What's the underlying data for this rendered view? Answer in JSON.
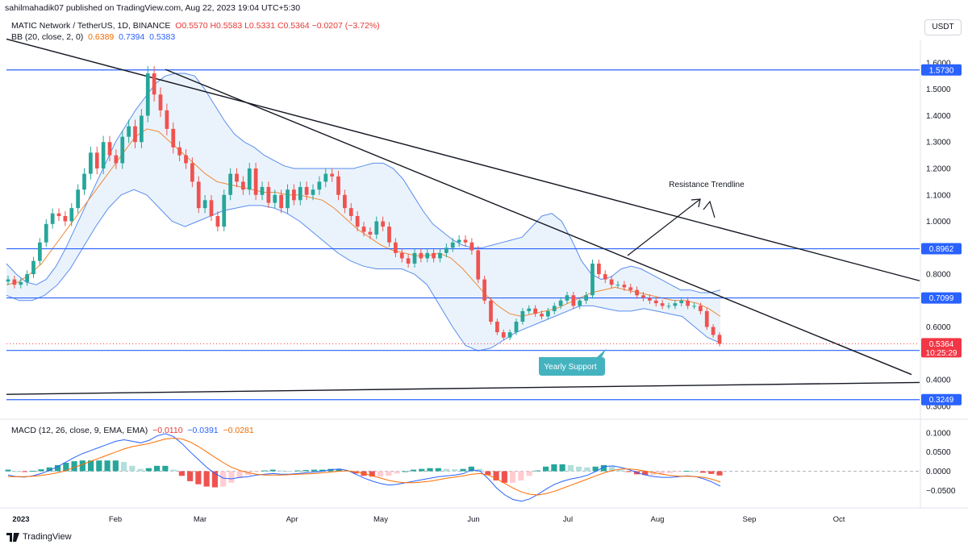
{
  "header": {
    "published": "sahilmahadik07 published on TradingView.com, Aug 22, 2023 19:04 UTC+5:30",
    "symbol": "MATIC Network / TetherUS, 1D, BINANCE",
    "ohlc": "O0.5570 H0.5583 L0.5331 C0.5364 −0.0207 (−3.72%)",
    "bb_label": "BB (20, close, 2, 0)",
    "bb_basis": "0.6389",
    "bb_upper": "0.7394",
    "bb_lower": "0.5383",
    "currency": "USDT"
  },
  "macd_header": {
    "label": "MACD (12, 26, close, 9, EMA, EMA)",
    "histogram": "−0.0110",
    "macd": "−0.0391",
    "signal": "−0.0281"
  },
  "branding": {
    "logo_text": "TradingView"
  },
  "colors": {
    "up": "#26a69a",
    "down": "#ef5350",
    "level": "#2962ff",
    "bb_fill": "#e3effa",
    "bb_band": "#5b8def",
    "bb_basis": "#ef8a3a",
    "price_tag": "#f23645",
    "support_tag": "#45b3bf"
  },
  "chart_data": {
    "type": "candlestick",
    "title": "MATIC Network / TetherUS, 1D, BINANCE",
    "x_ticks": [
      "2023",
      "Feb",
      "Mar",
      "Apr",
      "May",
      "Jun",
      "Jul",
      "Aug",
      "Sep",
      "Oct"
    ],
    "y_ticks": [
      "1.6000",
      "1.5000",
      "1.4000",
      "1.3000",
      "1.2000",
      "1.1000",
      "1.0000",
      "0.9000",
      "0.8000",
      "0.7000",
      "0.6000",
      "0.5000",
      "0.4000",
      "0.3000"
    ],
    "y_range": [
      0.26,
      1.67
    ],
    "levels": [
      {
        "value": 1.573,
        "label": "1.5730"
      },
      {
        "value": 0.8962,
        "label": "0.8962"
      },
      {
        "value": 0.7099,
        "label": "0.7099"
      },
      {
        "value": 0.5112,
        "label": "0.5112"
      },
      {
        "value": 0.3249,
        "label": "0.3249"
      }
    ],
    "current_price": {
      "value": 0.5364,
      "label": "0.5364",
      "countdown": "10:25:29"
    },
    "annotations": {
      "resistance": "Resistance Trendline",
      "support": "Yearly Support"
    },
    "series": [
      {
        "name": "MATIC/USDT close",
        "values": [
          0.78,
          0.76,
          0.77,
          0.8,
          0.85,
          0.92,
          0.99,
          1.03,
          1.02,
          1.0,
          1.05,
          1.12,
          1.18,
          1.26,
          1.2,
          1.3,
          1.25,
          1.22,
          1.32,
          1.36,
          1.3,
          1.4,
          1.56,
          1.48,
          1.42,
          1.35,
          1.28,
          1.25,
          1.22,
          1.15,
          1.05,
          1.08,
          1.02,
          0.98,
          1.1,
          1.18,
          1.15,
          1.12,
          1.2,
          1.1,
          1.13,
          1.07,
          1.1,
          1.05,
          1.12,
          1.08,
          1.13,
          1.1,
          1.12,
          1.15,
          1.18,
          1.17,
          1.1,
          1.05,
          1.02,
          0.98,
          0.96,
          0.95,
          1.0,
          0.98,
          0.92,
          0.88,
          0.86,
          0.84,
          0.88,
          0.86,
          0.88,
          0.86,
          0.88,
          0.9,
          0.92,
          0.93,
          0.92,
          0.89,
          0.78,
          0.7,
          0.62,
          0.58,
          0.56,
          0.58,
          0.62,
          0.66,
          0.67,
          0.65,
          0.64,
          0.66,
          0.68,
          0.7,
          0.72,
          0.68,
          0.7,
          0.72,
          0.84,
          0.8,
          0.78,
          0.76,
          0.76,
          0.75,
          0.74,
          0.72,
          0.71,
          0.7,
          0.69,
          0.68,
          0.68,
          0.69,
          0.7,
          0.68,
          0.68,
          0.66,
          0.6,
          0.57,
          0.5364
        ]
      },
      {
        "name": "BB upper",
        "values": [
          0.84,
          0.8,
          0.77,
          0.76,
          0.78,
          0.83,
          0.9,
          0.98,
          1.06,
          1.14,
          1.22,
          1.3,
          1.36,
          1.42,
          1.47,
          1.52,
          1.55,
          1.56,
          1.56,
          1.55,
          1.5,
          1.44,
          1.38,
          1.33,
          1.3,
          1.28,
          1.25,
          1.23,
          1.21,
          1.2,
          1.2,
          1.2,
          1.2,
          1.2,
          1.2,
          1.2,
          1.21,
          1.22,
          1.22,
          1.2,
          1.16,
          1.1,
          1.04,
          0.99,
          0.96,
          0.93,
          0.91,
          0.9,
          0.9,
          0.91,
          0.92,
          0.93,
          0.94,
          0.98,
          1.02,
          1.03,
          1.0,
          0.93,
          0.85,
          0.8,
          0.78,
          0.79,
          0.82,
          0.83,
          0.82,
          0.8,
          0.78,
          0.76,
          0.74,
          0.74,
          0.73,
          0.73,
          0.74
        ]
      },
      {
        "name": "BB basis",
        "values": [
          0.76,
          0.77,
          0.8,
          0.84,
          0.9,
          0.96,
          1.02,
          1.08,
          1.14,
          1.2,
          1.26,
          1.32,
          1.35,
          1.34,
          1.3,
          1.26,
          1.22,
          1.18,
          1.15,
          1.14,
          1.13,
          1.12,
          1.11,
          1.11,
          1.1,
          1.1,
          1.09,
          1.08,
          1.05,
          1.01,
          0.97,
          0.94,
          0.91,
          0.89,
          0.88,
          0.87,
          0.87,
          0.88,
          0.86,
          0.82,
          0.77,
          0.72,
          0.68,
          0.65,
          0.64,
          0.65,
          0.66,
          0.67,
          0.69,
          0.71,
          0.73,
          0.74,
          0.75,
          0.74,
          0.73,
          0.72,
          0.71,
          0.7,
          0.7,
          0.69,
          0.67,
          0.64
        ]
      },
      {
        "name": "BB lower",
        "values": [
          0.72,
          0.7,
          0.7,
          0.72,
          0.76,
          0.82,
          0.9,
          0.98,
          1.05,
          1.1,
          1.12,
          1.1,
          1.05,
          1.0,
          0.98,
          1.0,
          1.02,
          1.04,
          1.05,
          1.06,
          1.06,
          1.05,
          1.03,
          1.0,
          0.96,
          0.92,
          0.88,
          0.85,
          0.83,
          0.82,
          0.82,
          0.82,
          0.8,
          0.76,
          0.68,
          0.6,
          0.53,
          0.51,
          0.52,
          0.55,
          0.58,
          0.6,
          0.62,
          0.64,
          0.66,
          0.68,
          0.68,
          0.67,
          0.66,
          0.66,
          0.67,
          0.66,
          0.65,
          0.64,
          0.6,
          0.56,
          0.54
        ]
      }
    ],
    "macd": {
      "y_ticks": [
        "0.1000",
        "0.0500",
        "0.0000",
        "−0.0500"
      ],
      "y_range": [
        -0.085,
        0.125
      ],
      "macd_line": [
        -0.01,
        -0.014,
        -0.015,
        -0.012,
        -0.006,
        0.002,
        0.012,
        0.024,
        0.036,
        0.046,
        0.054,
        0.062,
        0.07,
        0.078,
        0.082,
        0.078,
        0.074,
        0.08,
        0.092,
        0.098,
        0.09,
        0.072,
        0.05,
        0.03,
        0.01,
        -0.006,
        -0.018,
        -0.02,
        -0.016,
        -0.014,
        -0.01,
        -0.008,
        -0.006,
        -0.008,
        -0.008,
        -0.006,
        -0.004,
        -0.002,
        0.0,
        0.004,
        0.006,
        0.002,
        -0.008,
        -0.018,
        -0.026,
        -0.032,
        -0.036,
        -0.034,
        -0.03,
        -0.026,
        -0.022,
        -0.018,
        -0.014,
        -0.012,
        -0.01,
        -0.006,
        0.004,
        0.0,
        -0.02,
        -0.044,
        -0.062,
        -0.074,
        -0.078,
        -0.072,
        -0.06,
        -0.046,
        -0.034,
        -0.026,
        -0.02,
        -0.016,
        -0.01,
        0.0,
        0.012,
        0.014,
        0.01,
        0.004,
        -0.004,
        -0.01,
        -0.014,
        -0.016,
        -0.016,
        -0.014,
        -0.012,
        -0.014,
        -0.02,
        -0.028,
        -0.039
      ],
      "signal_line": [
        -0.014,
        -0.014,
        -0.014,
        -0.013,
        -0.011,
        -0.008,
        -0.004,
        0.002,
        0.01,
        0.018,
        0.026,
        0.034,
        0.042,
        0.05,
        0.058,
        0.064,
        0.068,
        0.072,
        0.078,
        0.084,
        0.086,
        0.084,
        0.076,
        0.064,
        0.05,
        0.036,
        0.022,
        0.01,
        0.002,
        -0.004,
        -0.008,
        -0.01,
        -0.01,
        -0.01,
        -0.009,
        -0.008,
        -0.007,
        -0.006,
        -0.004,
        -0.002,
        0.0,
        0.001,
        -0.002,
        -0.006,
        -0.012,
        -0.018,
        -0.024,
        -0.028,
        -0.03,
        -0.03,
        -0.028,
        -0.026,
        -0.022,
        -0.018,
        -0.015,
        -0.012,
        -0.008,
        -0.006,
        -0.01,
        -0.02,
        -0.032,
        -0.044,
        -0.054,
        -0.06,
        -0.062,
        -0.058,
        -0.052,
        -0.044,
        -0.036,
        -0.028,
        -0.02,
        -0.012,
        -0.004,
        0.002,
        0.006,
        0.006,
        0.004,
        0.0,
        -0.004,
        -0.008,
        -0.011,
        -0.013,
        -0.013,
        -0.014,
        -0.016,
        -0.021,
        -0.028
      ],
      "histogram": [
        0.004,
        0.0,
        -0.001,
        0.001,
        0.005,
        0.01,
        0.016,
        0.022,
        0.026,
        0.028,
        0.028,
        0.028,
        0.028,
        0.028,
        0.024,
        0.014,
        0.006,
        0.008,
        0.014,
        0.014,
        0.004,
        -0.012,
        -0.026,
        -0.034,
        -0.04,
        -0.042,
        -0.04,
        -0.03,
        -0.018,
        -0.01,
        -0.002,
        0.002,
        0.004,
        0.002,
        0.001,
        0.002,
        0.003,
        0.004,
        0.004,
        0.006,
        0.006,
        0.001,
        -0.006,
        -0.012,
        -0.014,
        -0.014,
        -0.012,
        -0.006,
        0.0,
        0.004,
        0.006,
        0.008,
        0.008,
        0.006,
        0.005,
        0.006,
        0.012,
        0.006,
        -0.01,
        -0.024,
        -0.03,
        -0.03,
        -0.024,
        -0.012,
        0.002,
        0.012,
        0.018,
        0.018,
        0.016,
        0.012,
        0.01,
        0.012,
        0.016,
        0.012,
        0.004,
        -0.002,
        -0.008,
        -0.01,
        -0.01,
        -0.008,
        -0.005,
        -0.001,
        0.001,
        0.0,
        -0.004,
        -0.007,
        -0.011
      ]
    }
  }
}
